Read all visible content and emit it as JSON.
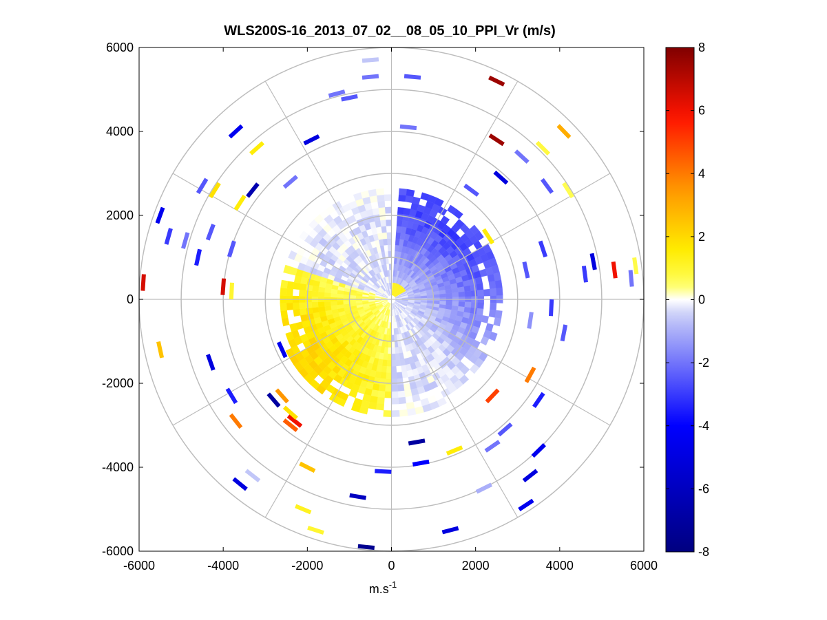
{
  "chart_data": {
    "type": "heatmap",
    "subtype": "polar-ppi-scan",
    "title": "WLS200S-16_2013_07_02__08_05_10_PPI_Vr (m/s)",
    "xlabel": "m.s",
    "xlabel_superscript": "-1",
    "ylabel": "",
    "xlim": [
      -6000,
      6000
    ],
    "ylim": [
      -6000,
      6000
    ],
    "x_ticks": [
      -6000,
      -4000,
      -2000,
      0,
      2000,
      4000,
      6000
    ],
    "y_ticks": [
      6000,
      4000,
      2000,
      0,
      -2000,
      -4000,
      -6000
    ],
    "x_tick_labels": [
      "-6000",
      "-4000",
      "-2000",
      "0",
      "2000",
      "4000",
      "6000"
    ],
    "y_tick_labels": [
      "6000",
      "4000",
      "2000",
      "0",
      "-2000",
      "-4000",
      "-6000"
    ],
    "polar_rings_m": [
      1000,
      2000,
      3000,
      4000,
      5000,
      6000
    ],
    "polar_spokes_deg": [
      0,
      30,
      60,
      90,
      120,
      150,
      180,
      210,
      240,
      270,
      300,
      330
    ],
    "colorbar": {
      "min": -8,
      "max": 8,
      "ticks": [
        8,
        6,
        4,
        2,
        0,
        -2,
        -4,
        -6,
        -8
      ],
      "tick_labels": [
        "8",
        "6",
        "4",
        "2",
        "0",
        "-2",
        "-4",
        "-6",
        "-8"
      ]
    },
    "dense_field": {
      "r_max_m": 2500,
      "south_r_max_m": 2700,
      "gap_bearing_deg": [
        -2,
        3
      ],
      "positive_sector_bearing_deg": [
        180,
        290
      ]
    },
    "scatter_points": [
      {
        "x": -5900,
        "y": 400,
        "v": 6.5
      },
      {
        "x": -4000,
        "y": 300,
        "v": 6.5
      },
      {
        "x": 5300,
        "y": 700,
        "v": 6.0
      },
      {
        "x": 2500,
        "y": 5200,
        "v": 7.5
      },
      {
        "x": 2500,
        "y": 3800,
        "v": 7.5
      },
      {
        "x": -2300,
        "y": -2900,
        "v": 6.0
      },
      {
        "x": 2400,
        "y": -2300,
        "v": 5.0
      },
      {
        "x": 4100,
        "y": 4000,
        "v": 3.0
      },
      {
        "x": -5500,
        "y": -1200,
        "v": 2.5
      },
      {
        "x": -3700,
        "y": -2900,
        "v": 4.0
      },
      {
        "x": -2600,
        "y": -2300,
        "v": 3.5
      },
      {
        "x": -2400,
        "y": -3000,
        "v": 4.5
      },
      {
        "x": 3300,
        "y": -1800,
        "v": 4.0
      },
      {
        "x": -3200,
        "y": 3600,
        "v": 1.5
      },
      {
        "x": -3600,
        "y": 2300,
        "v": 1.5
      },
      {
        "x": 2300,
        "y": 1500,
        "v": 1.5
      },
      {
        "x": -2000,
        "y": -4000,
        "v": 2.5
      },
      {
        "x": 1500,
        "y": -3600,
        "v": 1.5
      },
      {
        "x": -1800,
        "y": -5500,
        "v": 1.0
      },
      {
        "x": 5800,
        "y": 800,
        "v": 0.7
      },
      {
        "x": 3600,
        "y": 3600,
        "v": 0.8
      },
      {
        "x": 4200,
        "y": 2600,
        "v": 0.6
      },
      {
        "x": -2100,
        "y": -5000,
        "v": 1.2
      },
      {
        "x": -3800,
        "y": 200,
        "v": 1.0
      },
      {
        "x": -4200,
        "y": 2600,
        "v": 1.8
      },
      {
        "x": -2400,
        "y": -2700,
        "v": 1.8
      },
      {
        "x": -5500,
        "y": 2000,
        "v": -4.5
      },
      {
        "x": -5300,
        "y": 1500,
        "v": -3.0
      },
      {
        "x": -4600,
        "y": 1000,
        "v": -3.5
      },
      {
        "x": -4300,
        "y": 1600,
        "v": -2.5
      },
      {
        "x": -4900,
        "y": 1400,
        "v": -2.0
      },
      {
        "x": -3800,
        "y": 1200,
        "v": -2.5
      },
      {
        "x": -4500,
        "y": 2700,
        "v": -2.5
      },
      {
        "x": -3300,
        "y": 2600,
        "v": -6.5
      },
      {
        "x": -3700,
        "y": 4000,
        "v": -4.5
      },
      {
        "x": -1900,
        "y": 3800,
        "v": -5.0
      },
      {
        "x": -1300,
        "y": 4900,
        "v": -2.0
      },
      {
        "x": -2400,
        "y": 2800,
        "v": -2.0
      },
      {
        "x": -4300,
        "y": -1500,
        "v": -5.0
      },
      {
        "x": -3800,
        "y": -2300,
        "v": -3.5
      },
      {
        "x": -2800,
        "y": -2400,
        "v": -7.0
      },
      {
        "x": -2600,
        "y": -1200,
        "v": -4.5
      },
      {
        "x": -3600,
        "y": -4400,
        "v": -5.0
      },
      {
        "x": -800,
        "y": -4700,
        "v": -6.0
      },
      {
        "x": 600,
        "y": -3400,
        "v": -7.0
      },
      {
        "x": 700,
        "y": -3900,
        "v": -4.0
      },
      {
        "x": -200,
        "y": -4100,
        "v": -3.5
      },
      {
        "x": -600,
        "y": -5900,
        "v": -7.5
      },
      {
        "x": 1400,
        "y": -5500,
        "v": -5.0
      },
      {
        "x": 2200,
        "y": -4500,
        "v": -1.0
      },
      {
        "x": 2400,
        "y": -3500,
        "v": -2.0
      },
      {
        "x": 2700,
        "y": -3100,
        "v": -2.5
      },
      {
        "x": 3200,
        "y": -4900,
        "v": -4.5
      },
      {
        "x": 3300,
        "y": -4200,
        "v": -5.0
      },
      {
        "x": 3500,
        "y": -3600,
        "v": -4.5
      },
      {
        "x": 3500,
        "y": -2400,
        "v": -3.5
      },
      {
        "x": 4100,
        "y": -800,
        "v": -2.5
      },
      {
        "x": 3800,
        "y": -200,
        "v": -3.0
      },
      {
        "x": 4600,
        "y": 600,
        "v": -3.0
      },
      {
        "x": 4800,
        "y": 900,
        "v": -5.0
      },
      {
        "x": 3600,
        "y": 1200,
        "v": -3.0
      },
      {
        "x": 3200,
        "y": 700,
        "v": -2.5
      },
      {
        "x": 3700,
        "y": 2700,
        "v": -2.5
      },
      {
        "x": 3100,
        "y": 3400,
        "v": -2.0
      },
      {
        "x": 2600,
        "y": 2900,
        "v": -5.0
      },
      {
        "x": 1900,
        "y": 2600,
        "v": -2.5
      },
      {
        "x": 500,
        "y": 5300,
        "v": -2.5
      },
      {
        "x": -500,
        "y": 5300,
        "v": -2.0
      },
      {
        "x": -500,
        "y": 5700,
        "v": -0.6
      },
      {
        "x": 400,
        "y": 4100,
        "v": -2.0
      },
      {
        "x": 3300,
        "y": -500,
        "v": -1.5
      },
      {
        "x": 5700,
        "y": 500,
        "v": -2.0
      },
      {
        "x": -3300,
        "y": -4200,
        "v": -0.6
      },
      {
        "x": -1000,
        "y": 4800,
        "v": -2.5
      }
    ]
  }
}
